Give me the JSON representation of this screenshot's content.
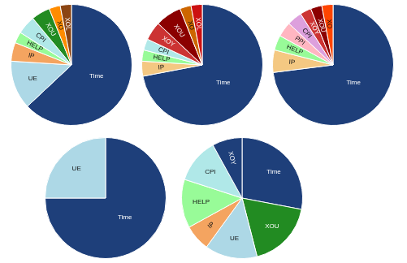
{
  "chart_data": [
    {
      "type": "pie",
      "categories": [
        "Time",
        "UE",
        "IP",
        "HELP",
        "CPI",
        "XOU",
        "XO",
        "XOL"
      ],
      "values": [
        63,
        13,
        5,
        3,
        5,
        5,
        3,
        3
      ],
      "colors": [
        "#1e3f7a",
        "#add8e6",
        "#f4a460",
        "#98fb98",
        "#b0e8e8",
        "#228b22",
        "#ff8c00",
        "#8b4513"
      ]
    },
    {
      "type": "pie",
      "categories": [
        "Time",
        "IP",
        "HELP",
        "CPI",
        "XOY",
        "XOU",
        "XO",
        "XOL"
      ],
      "values": [
        72,
        4,
        3,
        3,
        5,
        7,
        3,
        3
      ],
      "colors": [
        "#1e3f7a",
        "#f4c882",
        "#98fb98",
        "#b0e8e8",
        "#cc3333",
        "#8b0000",
        "#cd6600",
        "#cc1111"
      ]
    },
    {
      "type": "pie",
      "categories": [
        "Time",
        "IP",
        "HELP",
        "PPI",
        "CPI",
        "XOY",
        "XOU",
        "XO"
      ],
      "values": [
        73,
        6,
        4,
        4,
        4,
        3,
        3,
        3
      ],
      "colors": [
        "#1e3f7a",
        "#f4c882",
        "#98fb98",
        "#ffb6c1",
        "#dda0dd",
        "#cc3333",
        "#8b0000",
        "#ff4500"
      ]
    },
    {
      "type": "pie",
      "categories": [
        "Time",
        "UE"
      ],
      "values": [
        75,
        25
      ],
      "colors": [
        "#1e3f7a",
        "#add8e6"
      ]
    },
    {
      "type": "pie",
      "categories": [
        "Time",
        "XOU",
        "UE",
        "IP",
        "HELP",
        "CPI",
        "XOY"
      ],
      "values": [
        28,
        18,
        14,
        7,
        13,
        12,
        8
      ],
      "colors": [
        "#1e3f7a",
        "#228b22",
        "#add8e6",
        "#f4a460",
        "#98fb98",
        "#b0e8e8",
        "#1e3f7a"
      ]
    }
  ]
}
